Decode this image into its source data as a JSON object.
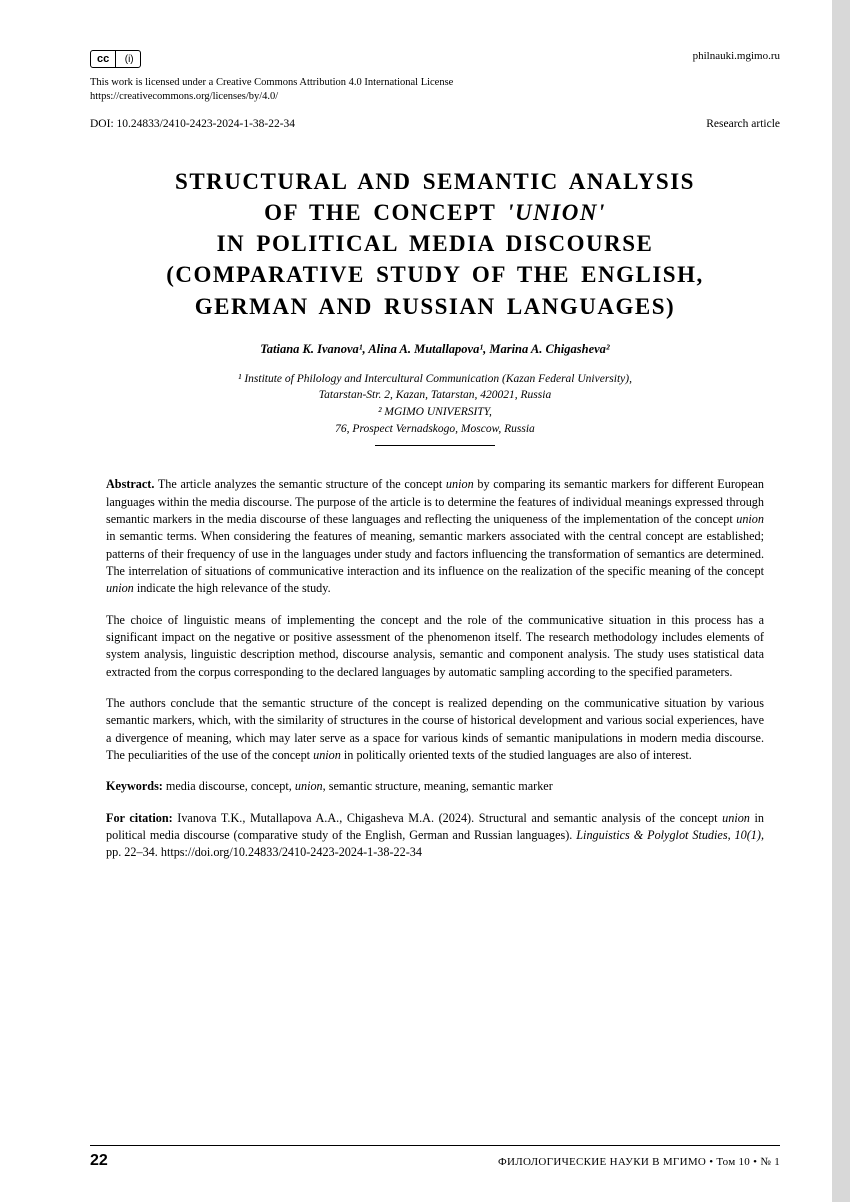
{
  "header": {
    "site_url": "philnauki.mgimo.ru",
    "license_line1": "This work is licensed under a Creative Commons Attribution 4.0 International License",
    "license_line2": "https://creativecommons.org/licenses/by/4.0/",
    "doi": "DOI: 10.24833/2410-2423-2024-1-38-22-34",
    "article_type": "Research article",
    "cc_label_left": "cc",
    "cc_label_right": "(i)"
  },
  "title": {
    "line1": "STRUCTURAL  AND  SEMANTIC  ANALYSIS",
    "line2_a": "OF  THE  CONCEPT  ",
    "line2_b": "'UNION'",
    "line3": "IN  POLITICAL  MEDIA  DISCOURSE",
    "line4": "(COMPARATIVE  STUDY  OF  THE  ENGLISH,",
    "line5": "GERMAN  AND  RUSSIAN  LANGUAGES)"
  },
  "authors": "Tatiana K. Ivanova¹, Alina A. Mutallapova¹, Marina A. Chigasheva²",
  "affiliations": {
    "line1": "¹ Institute of Philology and Intercultural Communication (Kazan Federal University),",
    "line2": "Tatarstan-Str. 2, Kazan, Tatarstan, 420021, Russia",
    "line3": "² MGIMO UNIVERSITY,",
    "line4": "76, Prospect Vernadskogo, Moscow, Russia"
  },
  "abstract": {
    "label": "Abstract.",
    "p1_a": " The article analyzes the semantic structure of the concept ",
    "p1_union": "union",
    "p1_b": " by comparing its semantic markers for different European languages within the media discourse. The purpose of the article is to determine the features of individual meanings expressed through semantic markers in the media discourse of these languages and reflecting the uniqueness of the implementation of the concept ",
    "p1_c": " in semantic terms. When considering the features of meaning, semantic markers associated with the central concept are established; patterns of their frequency of use in the languages under study and factors influencing the transformation of semantics are determined. The interrelation of situations of communicative interaction and its influence on the realization of the specific meaning of the concept ",
    "p1_d": " indicate the high relevance of the study.",
    "p2": "The choice of linguistic means of implementing the concept and the role of the communicative situation in this process has a significant impact on the negative or positive assessment of the phenomenon itself. The research methodology includes elements of system analysis, linguistic description method, discourse analysis, semantic and component analysis. The study uses statistical data extracted from the corpus corresponding to the declared languages by automatic sampling according to the specified parameters.",
    "p3_a": "The authors conclude that the semantic structure of the concept is realized depending on the communicative situation by various semantic markers, which, with the similarity of structures in the course of historical development and various social experiences, have a divergence of meaning, which may later serve as a space for various kinds of semantic manipulations in modern media discourse. The peculiarities of the use of the concept ",
    "p3_b": " in politically oriented texts of the studied languages are also of interest."
  },
  "keywords": {
    "label": "Keywords:",
    "text_a": " media discourse, concept, ",
    "text_union": "union",
    "text_b": ", semantic structure, meaning, semantic marker"
  },
  "citation": {
    "label": "For citation:",
    "text_a": " Ivanova T.K., Mutallapova A.A., Chigasheva M.A. (2024). Structural and semantic analysis of the concept ",
    "text_union": "union",
    "text_b": " in political media discourse (comparative study of the English, German and Russian languages). ",
    "journal": "Linguistics & Polyglot Studies, 10(1),",
    "text_c": " pp. 22–34. https://doi.org/10.24833/2410-2423-2024-1-38-22-34"
  },
  "footer": {
    "page_num": "22",
    "journal_text": "ФИЛОЛОГИЧЕСКИЕ НАУКИ В МГИМО  •  Том 10  •  № 1"
  }
}
